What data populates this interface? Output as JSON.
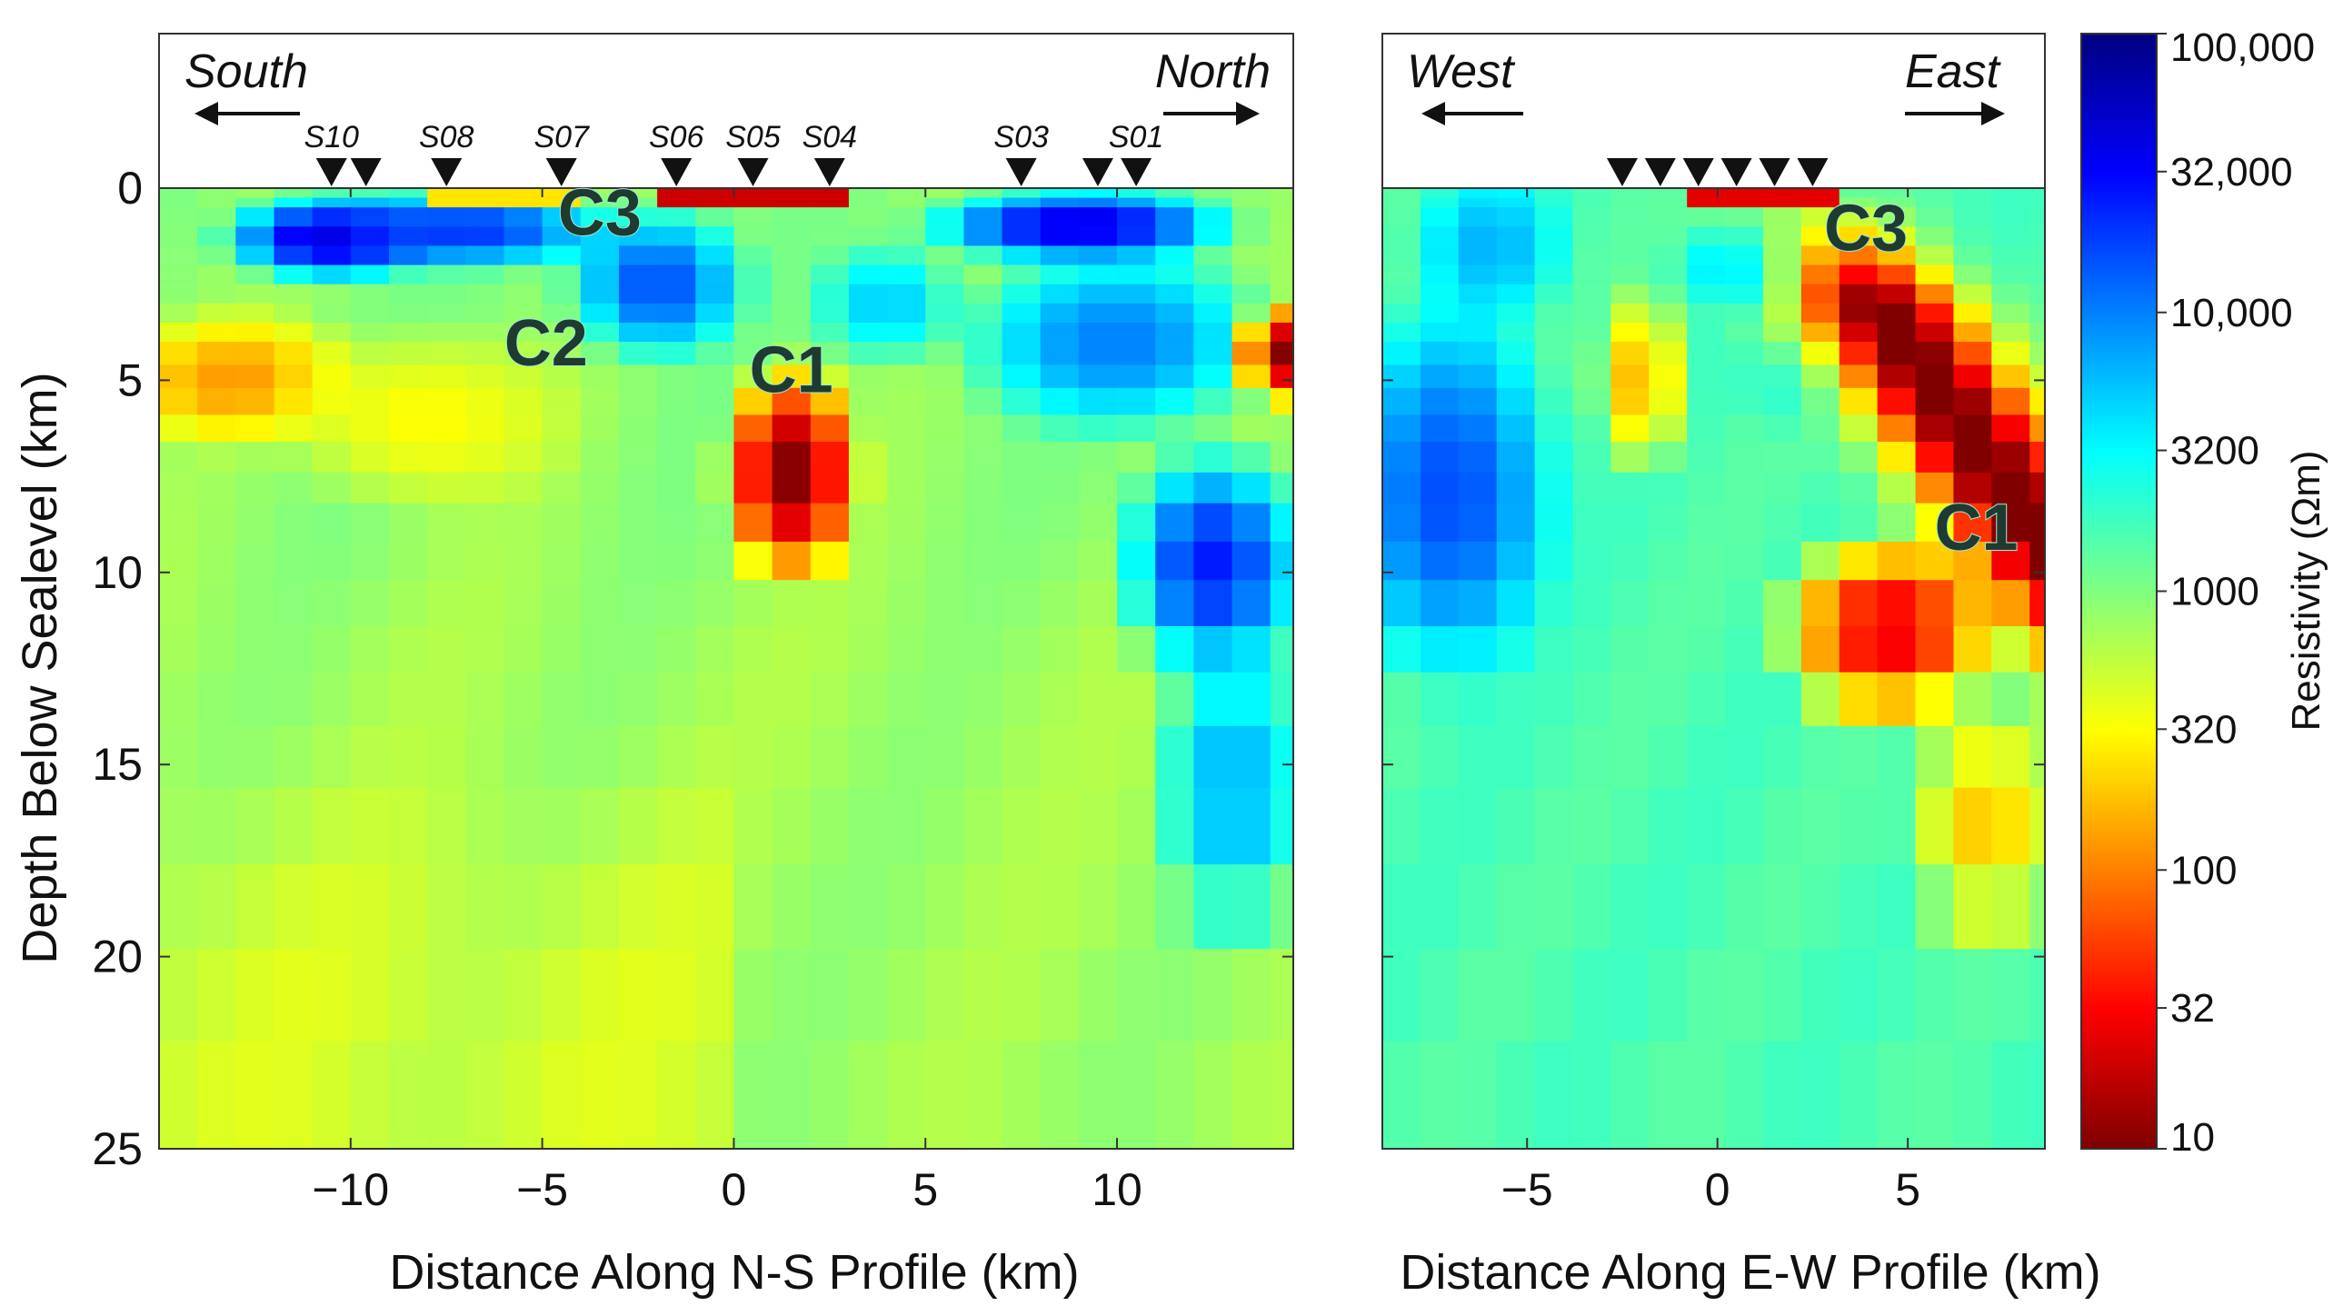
{
  "chart_data": [
    {
      "type": "heatmap",
      "title": "",
      "xlabel": "Distance Along N-S Profile (km)",
      "ylabel": "Depth Below Sealevel (km)",
      "xlim": [
        -15,
        14.6
      ],
      "ylim": [
        0,
        25
      ],
      "xticks": [
        -10,
        -5,
        0,
        5,
        10
      ],
      "xtick_labels": [
        "−10",
        "−5",
        "0",
        "5",
        "10"
      ],
      "yticks": [
        0,
        5,
        10,
        15,
        20,
        25
      ],
      "ytick_labels": [
        "0",
        "5",
        "10",
        "15",
        "20",
        "25"
      ],
      "direction_labels": {
        "left": "South",
        "right": "North"
      },
      "stations": [
        {
          "label": "S10",
          "x": -10.5
        },
        {
          "label": "",
          "x": -9.6
        },
        {
          "label": "S08",
          "x": -7.5
        },
        {
          "label": "S07",
          "x": -4.5
        },
        {
          "label": "S06",
          "x": -1.5
        },
        {
          "label": "S05",
          "x": 0.5
        },
        {
          "label": "S04",
          "x": 2.5
        },
        {
          "label": "S03",
          "x": 7.5
        },
        {
          "label": "",
          "x": 9.5
        },
        {
          "label": "S01",
          "x": 10.5
        }
      ],
      "annotations": [
        {
          "text": "C3",
          "x": -3.5,
          "y": 0.6
        },
        {
          "text": "C2",
          "x": -4.9,
          "y": 4.0
        },
        {
          "text": "C1",
          "x": 1.5,
          "y": 4.7
        }
      ],
      "resistivity_features": [
        {
          "description": "conductor C1",
          "x_range": [
            -0.5,
            3.5
          ],
          "depth_range": [
            4.6,
            10
          ],
          "log10_min": 1.0
        },
        {
          "description": "conductor C2",
          "x_range": [
            -15,
            -4
          ],
          "depth_range": [
            3,
            8
          ],
          "log10_min": 2.1
        },
        {
          "description": "shallow conductor C3",
          "x_range": [
            -2,
            3
          ],
          "depth_range": [
            0.2,
            0.5
          ],
          "log10_min": 1.3
        },
        {
          "description": "northern conductor",
          "x_range": [
            13.3,
            14.6
          ],
          "depth_range": [
            3,
            5.5
          ],
          "log10_min": 1.0
        },
        {
          "description": "near-surface resistor (south)",
          "x_range": [
            -13,
            -6
          ],
          "depth_range": [
            0.5,
            2.5
          ],
          "log10_max": 4.8
        },
        {
          "description": "near-surface resistor (north)",
          "x_range": [
            5,
            13
          ],
          "depth_range": [
            0.3,
            2.0
          ],
          "log10_max": 4.7
        },
        {
          "description": "deep northern resistor",
          "x_range": [
            9,
            14.6
          ],
          "depth_range": [
            7,
            13
          ],
          "log10_max": 4.4
        }
      ]
    },
    {
      "type": "heatmap",
      "title": "",
      "xlabel": "Distance Along E-W Profile (km)",
      "ylabel": "",
      "xlim": [
        -8.8,
        8.6
      ],
      "ylim": [
        0,
        25
      ],
      "xticks": [
        -5,
        0,
        5
      ],
      "xtick_labels": [
        "−5",
        "0",
        "5"
      ],
      "yticks": [
        0,
        5,
        10,
        15,
        20,
        25
      ],
      "direction_labels": {
        "left": "West",
        "right": "East"
      },
      "stations": [
        {
          "label": "",
          "x": -2.5
        },
        {
          "label": "",
          "x": -1.5
        },
        {
          "label": "",
          "x": -0.5
        },
        {
          "label": "",
          "x": 0.5
        },
        {
          "label": "",
          "x": 1.5
        },
        {
          "label": "",
          "x": 2.5
        }
      ],
      "annotations": [
        {
          "text": "C3",
          "x": 3.9,
          "y": 1.0
        },
        {
          "text": "C1",
          "x": 6.8,
          "y": 8.8
        }
      ],
      "resistivity_features": [
        {
          "description": "dipping conductor C1",
          "x_range": [
            -3,
            8.6
          ],
          "depth_range": [
            3,
            18
          ],
          "log10_min": 1.0
        },
        {
          "description": "shallow conductor C3",
          "x_range": [
            -0.5,
            3
          ],
          "depth_range": [
            0.2,
            0.6
          ],
          "log10_min": 1.4
        },
        {
          "description": "western resistor",
          "x_range": [
            -8.8,
            -4
          ],
          "depth_range": [
            4,
            13
          ],
          "log10_max": 4.2
        }
      ]
    }
  ],
  "colorbar": {
    "title": "Resistivity (Ωm)",
    "scale": "log10",
    "range": [
      10,
      100000
    ],
    "tick_values": [
      100000,
      32000,
      10000,
      3200,
      1000,
      320,
      100,
      32,
      10
    ],
    "tick_labels": [
      "100,000",
      "32,000",
      "10,000",
      "3200",
      "1000",
      "320",
      "100",
      "32",
      "10"
    ],
    "colormap": "jet (reversed: low = dark red, high = dark blue)"
  }
}
